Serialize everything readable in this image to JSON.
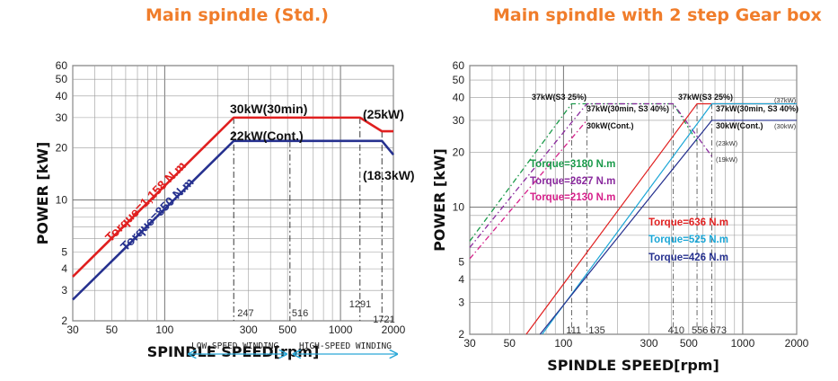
{
  "titles": {
    "left": "Main spindle (Std.)",
    "right": "Main spindle with 2 step Gear box"
  },
  "colors": {
    "title": "#f07d2b",
    "red": "#e02020",
    "navy": "#26318f",
    "green": "#1a9a4a",
    "purple": "#8a2a9e",
    "magenta": "#d6208a",
    "cyan": "#1aa6d6",
    "winding_arrow": "#2aa8d8"
  },
  "chart_data": [
    {
      "type": "line",
      "xscale": "log",
      "yscale": "log",
      "xlim": [
        30,
        2000
      ],
      "ylim": [
        2,
        60
      ],
      "xlabel": "SPINDLE SPEED[rpm]",
      "ylabel": "POWER [kW]",
      "xticks": [
        "30",
        "50",
        "100",
        "300",
        "500",
        "1000",
        "2000"
      ],
      "yticks": [
        "2",
        "3",
        "4",
        "5",
        "10",
        "20",
        "30",
        "40",
        "50",
        "60"
      ],
      "speed_marks": [
        "247",
        "516",
        "1291",
        "1721"
      ],
      "series": [
        {
          "name": "Torque=1,158 N.m",
          "color": "red",
          "x": [
            30,
            247,
            1291,
            1721,
            2000
          ],
          "y": [
            3.6,
            30,
            30,
            25,
            25
          ]
        },
        {
          "name": "Torque=850 N.m",
          "color": "navy",
          "x": [
            30,
            247,
            1721,
            2000
          ],
          "y": [
            2.65,
            22,
            22,
            18.3
          ]
        }
      ],
      "annotations": [
        "30kW(30min)",
        "22kW(Cont.)",
        "(25kW)",
        "(18.3kW)"
      ],
      "winding": {
        "low": "LOW-SPEED WINDING",
        "high": "HIGH-SPEED WINDING"
      }
    },
    {
      "type": "line",
      "xscale": "log",
      "yscale": "log",
      "xlim": [
        30,
        2000
      ],
      "ylim": [
        2,
        60
      ],
      "xlabel": "SPINDLE SPEED[rpm]",
      "ylabel": "POWER [kW]",
      "xticks": [
        "30",
        "50",
        "100",
        "300",
        "500",
        "1000",
        "2000"
      ],
      "yticks": [
        "2",
        "3",
        "4",
        "5",
        "10",
        "20",
        "30",
        "40",
        "50",
        "60"
      ],
      "speed_marks": [
        "111",
        "135",
        "410",
        "556",
        "673"
      ],
      "series": [
        {
          "name": "Torque=3180 N.m",
          "color": "green",
          "x": [
            30,
            111,
            410,
            556
          ],
          "y": [
            6.5,
            37,
            37,
            23
          ],
          "dashed": true
        },
        {
          "name": "Torque=2627 N.m",
          "color": "purple",
          "x": [
            30,
            135,
            410,
            673
          ],
          "y": [
            6.0,
            37,
            37,
            19
          ],
          "dashed": true
        },
        {
          "name": "Torque=2130 N.m",
          "color": "magenta",
          "x": [
            30,
            135
          ],
          "y": [
            5.2,
            30
          ],
          "dashed": true
        },
        {
          "name": "Torque=636 N.m",
          "color": "red",
          "x": [
            62,
            556,
            2000
          ],
          "y": [
            2,
            37,
            37
          ]
        },
        {
          "name": "Torque=525 N.m",
          "color": "cyan",
          "x": [
            76,
            673,
            2000
          ],
          "y": [
            2,
            37,
            37
          ]
        },
        {
          "name": "Torque=426 N.m",
          "color": "navy",
          "x": [
            74,
            673,
            2000
          ],
          "y": [
            2,
            30,
            30
          ]
        }
      ],
      "annotations": [
        "37kW(S3 25%)",
        "37kW(30min, S3 40%)",
        "30kW(Cont.)",
        "37kW(S3 25%)",
        "37kW(30min, S3 40%)",
        "30kW(Cont.)",
        "(37kW)",
        "(30kW)",
        "(23kW)",
        "(19kW)"
      ]
    }
  ]
}
